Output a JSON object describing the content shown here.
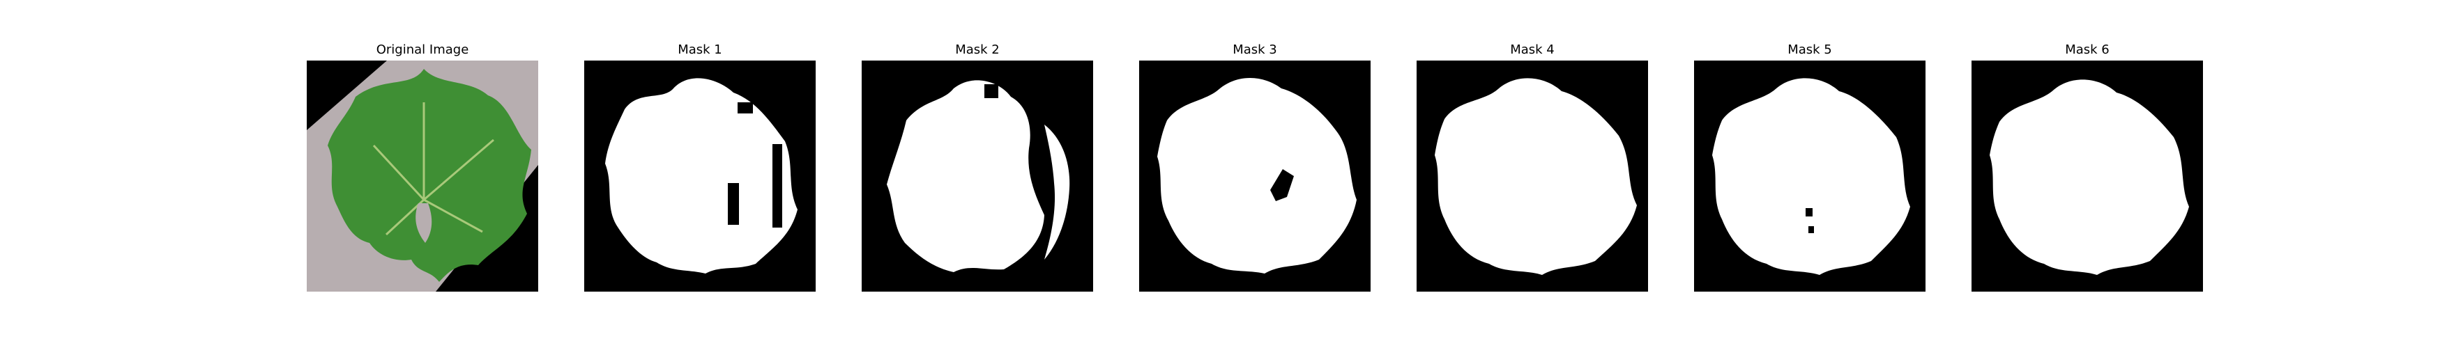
{
  "panels": [
    {
      "title": "Original Image",
      "image": "leaf-photo"
    },
    {
      "title": "Mask 1",
      "image": "binary-mask"
    },
    {
      "title": "Mask 2",
      "image": "binary-mask"
    },
    {
      "title": "Mask 3",
      "image": "binary-mask"
    },
    {
      "title": "Mask 4",
      "image": "binary-mask"
    },
    {
      "title": "Mask 5",
      "image": "binary-mask"
    },
    {
      "title": "Mask 6",
      "image": "binary-mask"
    }
  ],
  "colors": {
    "background": "#ffffff",
    "mask_background": "#000000",
    "mask_foreground": "#ffffff",
    "leaf_green": "#3f8f34",
    "photo_backdrop": "#b7aeb0"
  }
}
